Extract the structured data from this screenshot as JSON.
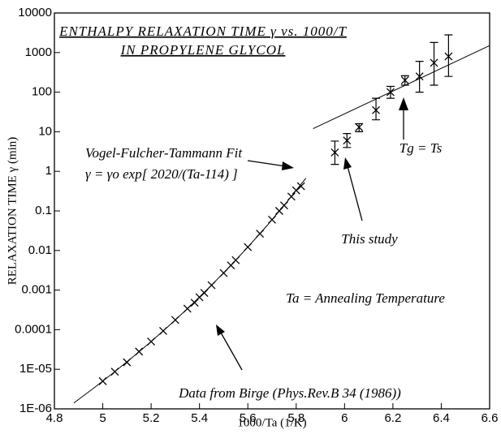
{
  "chart_data": {
    "type": "scatter",
    "title": [
      "ENTHALPY RELAXATION TIME γ vs. 1000/T",
      "IN PROPYLENE GLYCOL"
    ],
    "x_label": "1000/Ta (1/K)",
    "y_label": "RELAXATION TIME γ (min)",
    "xlim": [
      4.8,
      6.6
    ],
    "xticks": [
      4.8,
      5,
      5.2,
      5.4,
      5.6,
      5.8,
      6,
      6.2,
      6.4,
      6.6
    ],
    "ylim": [
      1e-06,
      10000
    ],
    "yscale": "log",
    "yticks": [
      10000,
      1000,
      100,
      10,
      1,
      0.1,
      0.01,
      0.001,
      0.0001,
      {
        "value": 1e-05,
        "label": "1E-05"
      },
      {
        "value": 1e-06,
        "label": "1E-06"
      }
    ],
    "series": [
      {
        "marker": "x",
        "color": "#000000",
        "x": [
          5.0,
          5.05,
          5.1,
          5.15,
          5.2,
          5.25,
          5.3,
          5.35,
          5.38,
          5.4,
          5.42,
          5.45,
          5.5,
          5.53,
          5.55,
          5.6,
          5.65,
          5.7,
          5.73,
          5.75,
          5.78,
          5.8,
          5.82
        ],
        "values": [
          5e-06,
          8.7e-06,
          1.5e-05,
          2.8e-05,
          5e-05,
          9.3e-05,
          0.000176,
          0.00034,
          0.00048,
          0.00066,
          0.00085,
          0.00133,
          0.0027,
          0.0042,
          0.0057,
          0.0122,
          0.0266,
          0.06,
          0.1,
          0.138,
          0.23,
          0.33,
          0.42
        ]
      },
      {
        "marker": "errorbar",
        "color": "#000000",
        "x": [
          5.96,
          6.01,
          6.06,
          6.13,
          6.19,
          6.25,
          6.31,
          6.37,
          6.43
        ],
        "values": [
          3,
          6,
          13,
          35,
          100,
          200,
          250,
          550,
          800
        ],
        "lower": [
          1.5,
          4,
          10,
          20,
          70,
          150,
          100,
          150,
          250
        ],
        "upper": [
          5.8,
          9,
          16,
          70,
          140,
          260,
          600,
          1800,
          2800
        ]
      }
    ],
    "lines": [
      {
        "color": "#000000",
        "x": [
          4.88,
          4.96,
          5.04,
          5.12,
          5.2,
          5.28,
          5.36,
          5.44,
          5.52,
          5.6,
          5.68,
          5.76,
          5.84
        ],
        "values": [
          1.4e-06,
          3.25e-06,
          7.8e-06,
          1.94e-05,
          5e-05,
          0.000136,
          0.000386,
          0.00116,
          0.00364,
          0.0122,
          0.043,
          0.164,
          0.67
        ]
      },
      {
        "color": "#000000",
        "x": [
          5.87,
          6.6
        ],
        "values": [
          12,
          1500
        ]
      }
    ],
    "annotations": [
      "Vogel-Fulcher-Tammann Fit",
      "γ = γo exp[ 2020/(Ta-114) ]",
      "Tg = Ts",
      "This study",
      "Ta = Annealing Temperature",
      "Data from Birge (Phys.Rev.B 34 (1986))"
    ]
  }
}
